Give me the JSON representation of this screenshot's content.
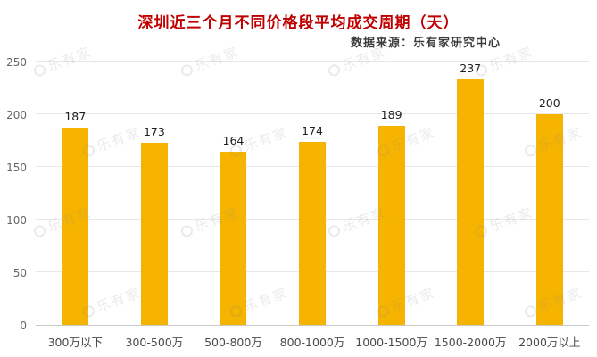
{
  "title": "深圳近三个月不同价格段平均成交周期（天）",
  "source": "数据来源：乐有家研究中心",
  "watermark": "乐有家",
  "colors": {
    "title": "#C00000",
    "bar": "#F6B400",
    "grid": "#E8E8E8",
    "axis_text": "#666666"
  },
  "chart_data": {
    "type": "bar",
    "title": "深圳近三个月不同价格段平均成交周期（天）",
    "source": "数据来源：乐有家研究中心",
    "categories": [
      "300万以下",
      "300-500万",
      "500-800万",
      "800-1000万",
      "1000-1500万",
      "1500-2000万",
      "2000万以上"
    ],
    "values": [
      187,
      173,
      164,
      174,
      189,
      237,
      200
    ],
    "xlabel": "",
    "ylabel": "",
    "ylim": [
      0,
      250
    ],
    "ytick_step": 50,
    "yticks": [
      0,
      50,
      100,
      150,
      200,
      250
    ],
    "grid": true,
    "legend_position": "none",
    "bar_color": "#F6B400"
  }
}
